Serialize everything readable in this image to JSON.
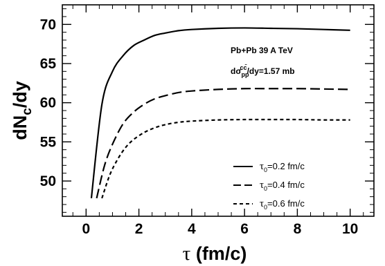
{
  "chart_data": {
    "type": "line",
    "xlabel_symbol": "τ",
    "xlabel_unit": " (fm/c)",
    "ylabel_main": "dN",
    "ylabel_sub": "c",
    "ylabel_tail": "/dy",
    "xlim": [
      -0.9,
      10.9
    ],
    "ylim": [
      45.5,
      72.5
    ],
    "x_ticks": [
      0,
      2,
      4,
      6,
      8,
      10
    ],
    "y_ticks": [
      50,
      55,
      60,
      65,
      70
    ],
    "x_tick_labels": [
      "0",
      "2",
      "4",
      "6",
      "8",
      "10"
    ],
    "y_tick_labels": [
      "50",
      "55",
      "60",
      "65",
      "70"
    ],
    "annotations": {
      "system": "Pb+Pb 39 A TeV",
      "xsec_prefix": "dσ",
      "xsec_sup": "cc̄",
      "xsec_sub": "pp",
      "xsec_tail": "/dy=1.57 mb"
    },
    "legend_position": "lower-right",
    "series": [
      {
        "name": "τ0=0.2 fm/c",
        "label_prefix": "τ",
        "label_sub": "0",
        "label_tail": "=0.2 fm/c",
        "style": "solid",
        "x": [
          0.2,
          0.6,
          1.0,
          1.4,
          1.8,
          2.2,
          2.6,
          3.0,
          3.5,
          4.0,
          5.0,
          6.0,
          7.0,
          8.0,
          9.0,
          10.0
        ],
        "y": [
          47.8,
          59.8,
          64.0,
          66.0,
          67.3,
          68.0,
          68.6,
          68.9,
          69.2,
          69.35,
          69.5,
          69.55,
          69.5,
          69.45,
          69.35,
          69.25
        ]
      },
      {
        "name": "τ0=0.4 fm/c",
        "label_prefix": "τ",
        "label_sub": "0",
        "label_tail": "=0.4 fm/c",
        "style": "dashed",
        "x": [
          0.4,
          0.7,
          1.0,
          1.4,
          1.8,
          2.2,
          2.6,
          3.0,
          3.5,
          4.0,
          5.0,
          6.0,
          7.0,
          8.0,
          9.0,
          10.0
        ],
        "y": [
          47.8,
          52.0,
          54.7,
          57.3,
          58.8,
          59.8,
          60.5,
          60.9,
          61.3,
          61.5,
          61.7,
          61.8,
          61.8,
          61.8,
          61.75,
          61.7
        ]
      },
      {
        "name": "τ0=0.6 fm/c",
        "label_prefix": "τ",
        "label_sub": "0",
        "label_tail": "=0.6 fm/c",
        "style": "dotted",
        "x": [
          0.6,
          0.9,
          1.2,
          1.5,
          1.8,
          2.2,
          2.6,
          3.0,
          3.5,
          4.0,
          5.0,
          6.0,
          7.0,
          8.0,
          9.0,
          10.0
        ],
        "y": [
          47.8,
          50.8,
          52.8,
          54.3,
          55.3,
          56.2,
          56.8,
          57.2,
          57.5,
          57.65,
          57.8,
          57.85,
          57.85,
          57.85,
          57.8,
          57.8
        ]
      }
    ]
  }
}
